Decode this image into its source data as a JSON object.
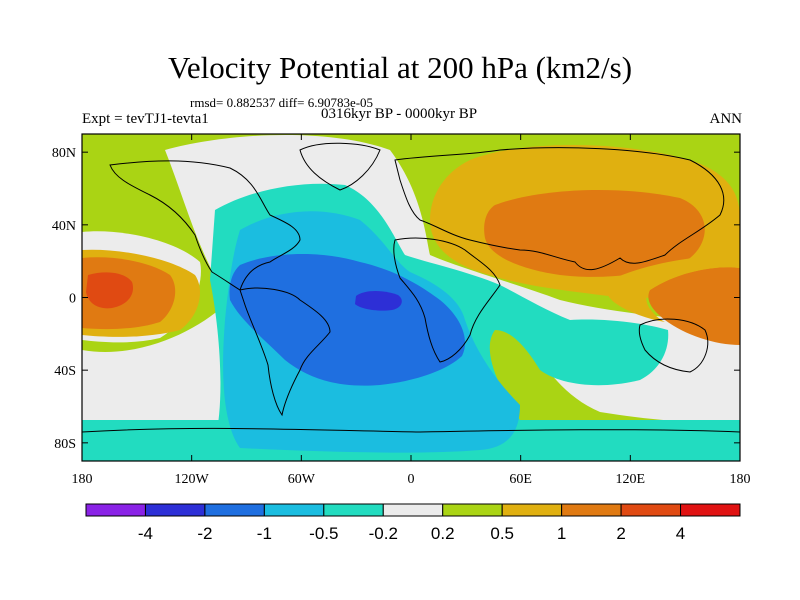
{
  "chart_data": {
    "type": "heatmap",
    "title": "Velocity Potential at 200 hPa (km2/s)",
    "stats_label": "rmsd= 0.882537  diff= 6.90783e-05",
    "experiment_label": "Expt = tevTJ1-tevta1",
    "period_label": "0316kyr BP - 0000kyr BP",
    "season_label": "ANN",
    "x_axis": {
      "range": [
        -180,
        180
      ],
      "ticks": [
        {
          "value": -180,
          "label": "180"
        },
        {
          "value": -120,
          "label": "120W"
        },
        {
          "value": -60,
          "label": "60W"
        },
        {
          "value": 0,
          "label": "0"
        },
        {
          "value": 60,
          "label": "60E"
        },
        {
          "value": 120,
          "label": "120E"
        },
        {
          "value": 180,
          "label": "180"
        }
      ]
    },
    "y_axis": {
      "range": [
        -90,
        90
      ],
      "ticks": [
        {
          "value": 80,
          "label": "80N"
        },
        {
          "value": 40,
          "label": "40N"
        },
        {
          "value": 0,
          "label": "0"
        },
        {
          "value": -40,
          "label": "40S"
        },
        {
          "value": -80,
          "label": "80S"
        }
      ]
    },
    "colorbar": {
      "levels": [
        "-4",
        "-2",
        "-1",
        "-0.5",
        "-0.2",
        "0.2",
        "0.5",
        "1",
        "2",
        "4"
      ],
      "colors": [
        "#8a22e6",
        "#2d2fd6",
        "#1f6fe0",
        "#1bbde0",
        "#22dcc0",
        "#ececec",
        "#aad414",
        "#e0b010",
        "#e07a12",
        "#e04a12",
        "#e01212"
      ]
    },
    "regions": [
      {
        "name": "Atlantic / Americas negative centre",
        "lon": -20,
        "lat": -5,
        "value_range": "< -2"
      },
      {
        "name": "Western Pacific (Hawaii) positive centre",
        "lon": -170,
        "lat": 5,
        "value_range": "2 to 4"
      },
      {
        "name": "Eurasia positive centre",
        "lon": 90,
        "lat": 40,
        "value_range": "1 to 2"
      },
      {
        "name": "Indo-Pacific positive",
        "lon": 160,
        "lat": 0,
        "value_range": "1 to 2"
      }
    ]
  }
}
